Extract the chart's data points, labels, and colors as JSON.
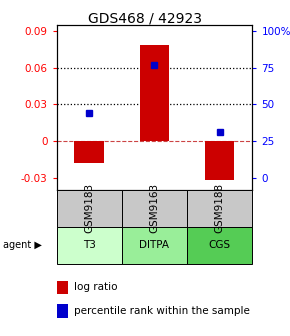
{
  "title": "GDS468 / 42923",
  "samples": [
    "GSM9183",
    "GSM9163",
    "GSM9188"
  ],
  "agents": [
    "T3",
    "DITPA",
    "CGS"
  ],
  "log_ratios": [
    -0.018,
    0.079,
    -0.032
  ],
  "percentile_ranks": [
    0.44,
    0.77,
    0.31
  ],
  "bar_color": "#cc0000",
  "dot_color": "#0000cc",
  "ylim_left": [
    -0.04,
    0.095
  ],
  "ylim_right": [
    -0.04,
    0.095
  ],
  "yticks_left": [
    -0.03,
    0.0,
    0.03,
    0.06,
    0.09
  ],
  "ytick_labels_left": [
    "-0.03",
    "0",
    "0.03",
    "0.06",
    "0.09"
  ],
  "yticks_right_vals": [
    -0.03,
    0.0,
    0.03,
    0.06,
    0.09
  ],
  "ytick_labels_right": [
    "0",
    "25",
    "50",
    "75",
    "100%"
  ],
  "hlines_dotted": [
    0.06,
    0.03
  ],
  "hline_dashed": 0.0,
  "agent_colors": [
    "#ccffcc",
    "#99ee99",
    "#55cc55"
  ],
  "sample_color": "#c8c8c8",
  "bar_width": 0.45,
  "title_fontsize": 10,
  "tick_fontsize": 7.5,
  "table_fontsize": 7.5,
  "legend_fontsize": 7.5
}
